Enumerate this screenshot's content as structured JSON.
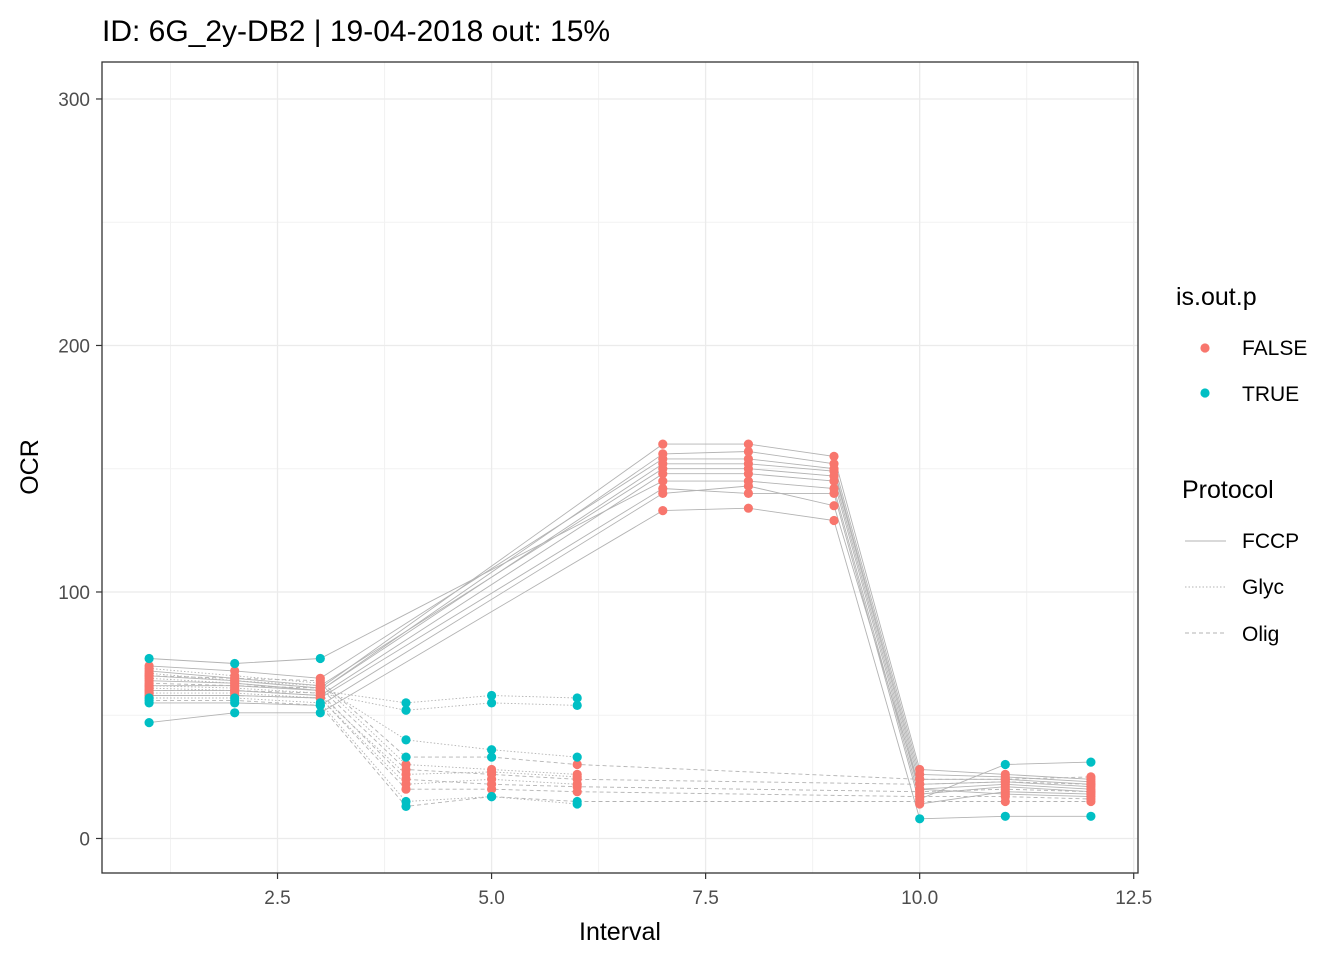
{
  "chart_data": {
    "type": "line",
    "title": "ID: 6G_2y-DB2 | 19-04-2018  out: 15%",
    "xlabel": "Interval",
    "ylabel": "OCR",
    "xlim": [
      0.45,
      12.55
    ],
    "ylim": [
      -14,
      315
    ],
    "x_ticks": [
      2.5,
      5.0,
      7.5,
      10.0,
      12.5
    ],
    "x_tick_labels": [
      "2.5",
      "5.0",
      "7.5",
      "10.0",
      "12.5"
    ],
    "y_ticks": [
      0,
      100,
      200,
      300
    ],
    "y_tick_labels": [
      "0",
      "100",
      "200",
      "300"
    ],
    "grid": true,
    "legend_position": "right",
    "colors": {
      "FALSE": "#F8766D",
      "TRUE": "#00BFC4",
      "lines": "#b3b3b3"
    },
    "legends": [
      {
        "title": "is.out.p",
        "kind": "color",
        "entries": [
          "FALSE",
          "TRUE"
        ]
      },
      {
        "title": "Protocol",
        "kind": "linetype",
        "entries": [
          "FCCP",
          "Glyc",
          "Olig"
        ],
        "linetypes": [
          "solid",
          "dotted",
          "dashed"
        ]
      }
    ],
    "series": [
      {
        "protocol": "FCCP",
        "x": [
          1,
          2,
          3,
          7,
          8,
          9,
          10,
          11,
          12
        ],
        "y": [
          66,
          64,
          61,
          160,
          160,
          155,
          28,
          26,
          24
        ],
        "out": [
          false,
          false,
          false,
          false,
          false,
          false,
          false,
          false,
          false
        ]
      },
      {
        "protocol": "FCCP",
        "x": [
          1,
          2,
          3,
          7,
          8,
          9,
          10,
          11,
          12
        ],
        "y": [
          64,
          63,
          60,
          156,
          157,
          152,
          26,
          25,
          23
        ],
        "out": [
          false,
          false,
          false,
          false,
          false,
          false,
          false,
          false,
          false
        ]
      },
      {
        "protocol": "FCCP",
        "x": [
          1,
          2,
          3,
          7,
          8,
          9,
          10,
          11,
          12
        ],
        "y": [
          70,
          68,
          65,
          154,
          154,
          150,
          24,
          24,
          22
        ],
        "out": [
          false,
          false,
          false,
          false,
          false,
          false,
          false,
          false,
          false
        ]
      },
      {
        "protocol": "FCCP",
        "x": [
          1,
          2,
          3,
          7,
          8,
          9,
          10,
          11,
          12
        ],
        "y": [
          62,
          62,
          60,
          152,
          152,
          149,
          22,
          23,
          21
        ],
        "out": [
          false,
          false,
          false,
          false,
          false,
          false,
          false,
          false,
          false
        ]
      },
      {
        "protocol": "FCCP",
        "x": [
          1,
          2,
          3,
          7,
          8,
          9,
          10,
          11,
          12
        ],
        "y": [
          68,
          65,
          62,
          150,
          150,
          147,
          20,
          22,
          20
        ],
        "out": [
          false,
          false,
          false,
          false,
          false,
          false,
          false,
          false,
          false
        ]
      },
      {
        "protocol": "FCCP",
        "x": [
          1,
          2,
          3,
          7,
          8,
          9,
          10,
          11,
          12
        ],
        "y": [
          60,
          60,
          58,
          148,
          148,
          145,
          18,
          21,
          19
        ],
        "out": [
          false,
          false,
          false,
          false,
          false,
          false,
          false,
          false,
          false
        ]
      },
      {
        "protocol": "FCCP",
        "x": [
          1,
          2,
          3,
          7,
          8,
          9,
          10,
          11,
          12
        ],
        "y": [
          73,
          71,
          73,
          145,
          145,
          142,
          16,
          30,
          31
        ],
        "out": [
          true,
          true,
          true,
          false,
          false,
          false,
          false,
          true,
          true
        ]
      },
      {
        "protocol": "FCCP",
        "x": [
          1,
          2,
          3,
          7,
          8,
          9,
          10,
          11,
          12
        ],
        "y": [
          58,
          58,
          57,
          142,
          140,
          140,
          14,
          19,
          18
        ],
        "out": [
          false,
          false,
          false,
          false,
          false,
          false,
          false,
          false,
          false
        ]
      },
      {
        "protocol": "FCCP",
        "x": [
          1,
          2,
          3,
          7,
          8,
          9,
          10,
          11,
          12
        ],
        "y": [
          55,
          55,
          54,
          140,
          143,
          135,
          20,
          18,
          17
        ],
        "out": [
          true,
          true,
          true,
          false,
          false,
          false,
          false,
          false,
          false
        ]
      },
      {
        "protocol": "FCCP",
        "x": [
          1,
          2,
          3,
          7,
          8,
          9,
          10,
          11,
          12
        ],
        "y": [
          47,
          51,
          51,
          133,
          134,
          129,
          8,
          9,
          9
        ],
        "out": [
          true,
          true,
          true,
          false,
          false,
          false,
          true,
          true,
          true
        ]
      },
      {
        "protocol": "Glyc",
        "x": [
          1,
          2,
          3,
          4,
          5,
          6
        ],
        "y": [
          65,
          63,
          60,
          55,
          58,
          57
        ],
        "out": [
          false,
          false,
          false,
          true,
          true,
          true
        ]
      },
      {
        "protocol": "Glyc",
        "x": [
          1,
          2,
          3,
          4,
          5,
          6
        ],
        "y": [
          62,
          61,
          59,
          52,
          55,
          54
        ],
        "out": [
          false,
          false,
          false,
          true,
          true,
          true
        ]
      },
      {
        "protocol": "Glyc",
        "x": [
          1,
          2,
          3,
          4,
          5,
          6
        ],
        "y": [
          67,
          64,
          62,
          40,
          36,
          33
        ],
        "out": [
          false,
          false,
          false,
          true,
          true,
          true
        ]
      },
      {
        "protocol": "Glyc",
        "x": [
          1,
          2,
          3,
          4,
          5,
          6
        ],
        "y": [
          69,
          66,
          63,
          30,
          28,
          26
        ],
        "out": [
          false,
          false,
          false,
          false,
          false,
          false
        ]
      },
      {
        "protocol": "Glyc",
        "x": [
          1,
          2,
          3,
          4,
          5,
          6
        ],
        "y": [
          61,
          60,
          58,
          26,
          27,
          25
        ],
        "out": [
          false,
          false,
          false,
          false,
          false,
          false
        ]
      },
      {
        "protocol": "Glyc",
        "x": [
          1,
          2,
          3,
          4,
          5,
          6
        ],
        "y": [
          59,
          59,
          57,
          22,
          24,
          22
        ],
        "out": [
          false,
          false,
          false,
          false,
          false,
          false
        ]
      },
      {
        "protocol": "Glyc",
        "x": [
          1,
          2,
          3,
          4,
          5,
          6
        ],
        "y": [
          57,
          57,
          55,
          15,
          17,
          14
        ],
        "out": [
          true,
          true,
          true,
          true,
          true,
          true
        ]
      },
      {
        "protocol": "Olig",
        "x": [
          1,
          2,
          3,
          4,
          5,
          6,
          10,
          11,
          12
        ],
        "y": [
          66,
          65,
          64,
          33,
          33,
          30,
          24,
          24,
          25
        ],
        "out": [
          false,
          false,
          false,
          true,
          true,
          false,
          false,
          false,
          false
        ]
      },
      {
        "protocol": "Olig",
        "x": [
          1,
          2,
          3,
          4,
          5,
          6,
          10,
          11,
          12
        ],
        "y": [
          63,
          62,
          61,
          28,
          26,
          24,
          22,
          23,
          22
        ],
        "out": [
          false,
          false,
          false,
          false,
          false,
          false,
          false,
          false,
          false
        ]
      },
      {
        "protocol": "Olig",
        "x": [
          1,
          2,
          3,
          4,
          5,
          6,
          10,
          11,
          12
        ],
        "y": [
          60,
          60,
          59,
          24,
          22,
          21,
          19,
          20,
          19
        ],
        "out": [
          false,
          false,
          false,
          false,
          false,
          false,
          false,
          false,
          false
        ]
      },
      {
        "protocol": "Olig",
        "x": [
          1,
          2,
          3,
          4,
          5,
          6,
          10,
          11,
          12
        ],
        "y": [
          58,
          58,
          57,
          20,
          20,
          19,
          17,
          17,
          16
        ],
        "out": [
          false,
          false,
          false,
          false,
          false,
          false,
          false,
          false,
          false
        ]
      },
      {
        "protocol": "Olig",
        "x": [
          1,
          2,
          3,
          4,
          5,
          6,
          10,
          11,
          12
        ],
        "y": [
          56,
          56,
          54,
          13,
          17,
          15,
          15,
          15,
          15
        ],
        "out": [
          true,
          true,
          true,
          true,
          true,
          true,
          false,
          false,
          false
        ]
      }
    ]
  }
}
